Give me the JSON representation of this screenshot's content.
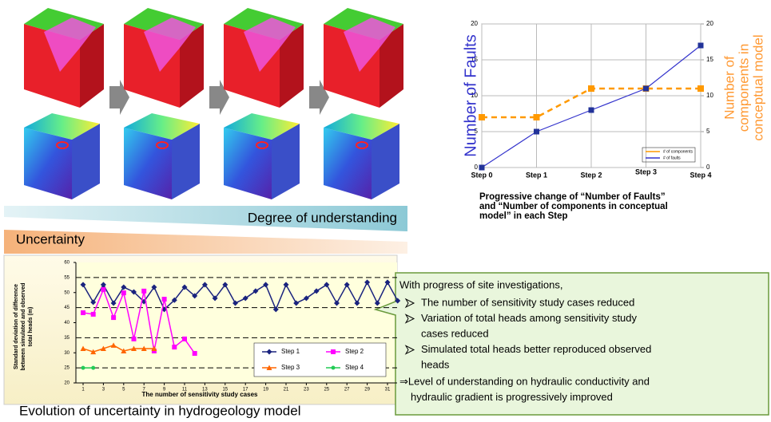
{
  "chart_data": [
    {
      "type": "line",
      "ylabel": "Number of Faults",
      "y2label": [
        "Number of",
        "components in",
        "conceptual model"
      ],
      "categories": [
        "Step 0",
        "Step 1",
        "Step 2",
        "Step 3",
        "Step 4"
      ],
      "ylim": [
        0,
        20
      ],
      "yticks": [
        0,
        5,
        10,
        15,
        20
      ],
      "y2lim": [
        0,
        20
      ],
      "y2ticks": [
        0,
        5,
        10,
        15,
        20
      ],
      "grid": true,
      "legend": "lower right",
      "series": [
        {
          "name": "# of components",
          "color": "#ff9900",
          "axis": "y2",
          "values": [
            7,
            7,
            11,
            11,
            11
          ]
        },
        {
          "name": "# of faults",
          "color": "#3333cc",
          "values": [
            0,
            5,
            8,
            11,
            17
          ]
        }
      ],
      "caption": [
        "Progressive change of “Number of Faults”",
        "and “Number of components in conceptual",
        "model” in each Step"
      ]
    },
    {
      "type": "line",
      "ylabel": [
        "Standard deviation of difference",
        "between simulated and observed",
        "total heads (m)"
      ],
      "xlabel": "The number of sensitivity study cases",
      "xlim": [
        0,
        33
      ],
      "xticks": [
        1,
        3,
        5,
        7,
        9,
        11,
        13,
        15,
        17,
        19,
        21,
        23,
        25,
        27,
        29,
        31
      ],
      "ylim": [
        20,
        60
      ],
      "yticks": [
        20,
        25,
        30,
        35,
        40,
        45,
        50,
        55,
        60
      ],
      "grid": true,
      "legend": "lower right",
      "series": [
        {
          "name": "Step 1",
          "color": "#1a237e",
          "x": [
            1,
            2,
            3,
            4,
            5,
            6,
            7,
            8,
            9,
            10,
            11,
            12,
            13,
            14,
            15,
            16,
            17,
            18,
            19,
            20,
            21,
            22,
            23,
            24,
            25,
            26,
            27,
            28,
            29,
            30,
            31,
            32
          ],
          "values": [
            52.6,
            46.8,
            52.6,
            46.5,
            51.8,
            50.2,
            47.0,
            51.8,
            44.4,
            47.5,
            51.8,
            48.9,
            52.6,
            48.1,
            52.6,
            46.5,
            48.1,
            50.5,
            52.6,
            44.4,
            52.6,
            46.5,
            48.1,
            50.5,
            52.6,
            46.5,
            52.6,
            46.5,
            53.4,
            46.5,
            53.4,
            47.3
          ]
        },
        {
          "name": "Step 2",
          "color": "#ff00ff",
          "x": [
            1,
            2,
            3,
            4,
            5,
            6,
            7,
            8,
            9,
            10,
            11,
            12
          ],
          "values": [
            43.3,
            42.8,
            51.0,
            41.7,
            49.9,
            34.6,
            50.5,
            30.6,
            47.8,
            31.9,
            34.6,
            29.8
          ]
        },
        {
          "name": "Step 3",
          "color": "#ff6600",
          "x": [
            1,
            2,
            3,
            4,
            5,
            6,
            7,
            8
          ],
          "values": [
            31.4,
            30.3,
            31.4,
            32.5,
            30.6,
            31.4,
            31.4,
            31.4
          ]
        },
        {
          "name": "Step 4",
          "color": "#22cc55",
          "x": [
            1,
            2
          ],
          "values": [
            25.0,
            25.0
          ]
        }
      ],
      "caption": "Evolution of uncertainty in hydrogeology model"
    }
  ],
  "bands": {
    "understanding": "Degree of understanding",
    "uncertainty": "Uncertainty"
  },
  "callout": {
    "intro": "With progress of site investigations,",
    "bullets": [
      [
        "The number of sensitivity study cases reduced"
      ],
      [
        "Variation of total heads among sensitivity study",
        "cases reduced"
      ],
      [
        "Simulated total heads better reproduced observed",
        "heads"
      ]
    ],
    "conclusion": [
      "⇒Level of understanding on hydraulic conductivity and",
      "hydraulic gradient is progressively improved"
    ]
  }
}
